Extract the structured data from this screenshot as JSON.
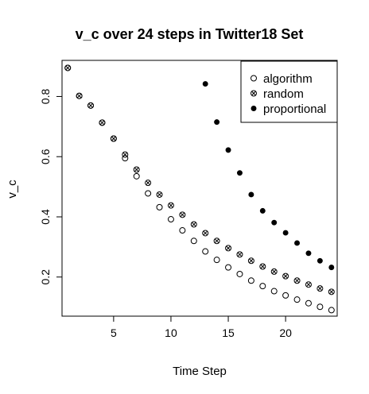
{
  "chart_data": {
    "type": "scatter",
    "title": "v_c over 24 steps in Twitter18 Set",
    "xlabel": "Time Step",
    "ylabel": "v_c",
    "xlim": [
      0.5,
      24.5
    ],
    "ylim": [
      0.07,
      0.92
    ],
    "xticks": [
      5,
      10,
      15,
      20
    ],
    "yticks": [
      0.2,
      0.4,
      0.6,
      0.8
    ],
    "grid": false,
    "legend_position": "top-right",
    "series": [
      {
        "name": "algorithm",
        "marker": "open-circle",
        "x": [
          1,
          2,
          3,
          4,
          5,
          6,
          7,
          8,
          9,
          10,
          11,
          12,
          13,
          14,
          15,
          16,
          17,
          18,
          19,
          20,
          21,
          22,
          23,
          24
        ],
        "y": [
          0.895,
          0.802,
          0.77,
          0.713,
          0.66,
          0.595,
          0.535,
          0.478,
          0.432,
          0.392,
          0.355,
          0.32,
          0.285,
          0.257,
          0.232,
          0.21,
          0.188,
          0.17,
          0.153,
          0.139,
          0.125,
          0.113,
          0.101,
          0.09
        ]
      },
      {
        "name": "random",
        "marker": "circle-x",
        "x": [
          1,
          2,
          3,
          4,
          5,
          6,
          7,
          8,
          9,
          10,
          11,
          12,
          13,
          14,
          15,
          16,
          17,
          18,
          19,
          20,
          21,
          22,
          23,
          24
        ],
        "y": [
          0.895,
          0.802,
          0.77,
          0.713,
          0.66,
          0.607,
          0.557,
          0.513,
          0.474,
          0.438,
          0.407,
          0.375,
          0.346,
          0.32,
          0.296,
          0.275,
          0.254,
          0.235,
          0.218,
          0.203,
          0.188,
          0.175,
          0.162,
          0.151
        ]
      },
      {
        "name": "proportional",
        "marker": "filled-circle",
        "x": [
          13,
          14,
          15,
          16,
          17,
          18,
          19,
          20,
          21,
          22,
          23,
          24
        ],
        "y": [
          0.842,
          0.715,
          0.622,
          0.546,
          0.474,
          0.42,
          0.381,
          0.347,
          0.313,
          0.279,
          0.254,
          0.232
        ]
      }
    ]
  }
}
